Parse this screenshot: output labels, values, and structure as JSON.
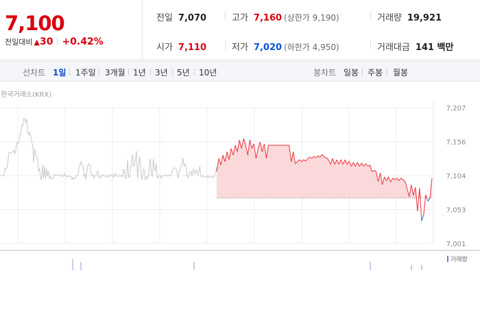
{
  "quote": {
    "price": "7,100",
    "change_label": "전일대비",
    "change_arrow": "▲",
    "change_amount": "30",
    "change_percent": "+0.42%",
    "prev_close_label": "전일",
    "prev_close": "7,070",
    "open_label": "시가",
    "open": "7,110",
    "high_label": "고가",
    "high": "7,160",
    "upper_limit": "(상한가 9,190)",
    "low_label": "저가",
    "low": "7,020",
    "lower_limit": "(하한가 4,950)",
    "volume_label": "거래량",
    "volume": "19,921",
    "value_label": "거래대금",
    "value": "141 백만"
  },
  "toolbar": {
    "line_chart_label": "선차트",
    "periods": [
      "1일",
      "1주일",
      "3개월",
      "1년",
      "3년",
      "5년",
      "10년"
    ],
    "selected_period": "1일",
    "candle_chart_label": "봉차트",
    "candles": [
      "일봉",
      "주봉",
      "월봉"
    ]
  },
  "chart_data": {
    "type": "line",
    "source": "한국거래소(KRX)",
    "y_ticks": [
      "7,207",
      "7,156",
      "7,104",
      "7,053",
      "7,001"
    ],
    "ylim": [
      7001,
      7207
    ],
    "reference_value": 7070,
    "volume_legend": "거래량",
    "colors": {
      "up": "#e8323c",
      "up_fill": "#fbd9da",
      "down": "#2b6fd6",
      "previous_day": "#c8c8c8",
      "grid": "#eeeeee"
    },
    "series": [
      {
        "values": [
          7104,
          7104,
          7104,
          7104,
          7104,
          7115,
          7114,
          7116,
          7125,
          7139,
          7138,
          7139,
          7139,
          7140,
          7142,
          7137,
          7143,
          7154,
          7153,
          7153,
          7167,
          7166,
          7180,
          7179,
          7190,
          7190,
          7184,
          7190,
          7170,
          7165,
          7170,
          7164,
          7155,
          7150,
          7124,
          7145,
          7135,
          7133,
          7130,
          7110,
          7115,
          7100,
          7098,
          7120,
          7100,
          7118,
          7099,
          7115,
          7103,
          7111,
          7099,
          7103,
          7099,
          7099,
          7100,
          7106,
          7105,
          7105,
          7104,
          7104,
          7105,
          7104,
          7105,
          7102,
          7104,
          7107,
          7103,
          7104,
          7102,
          7103,
          7104,
          7102,
          7102,
          7098,
          7101,
          7099,
          7099,
          7104,
          7104,
          7105,
          7116,
          7121,
          7125,
          7119,
          7118,
          7102,
          7106,
          7098,
          7112,
          7121,
          7122,
          7119,
          7108,
          7104,
          7105,
          7100,
          7104,
          7103,
          7110,
          7111,
          7102,
          7100,
          7103,
          7103,
          7105,
          7104,
          7103,
          7104,
          7102,
          7101,
          7105,
          7103,
          7104,
          7106,
          7103,
          7101,
          7107,
          7104,
          7105,
          7102,
          7103,
          7104,
          7103,
          7104,
          7102,
          7114,
          7109,
          7099,
          7104,
          7128,
          7102,
          7101,
          7115,
          7124,
          7136,
          7118,
          7120,
          7131,
          7141,
          7100,
          7120,
          7133,
          7119,
          7098,
          7102,
          7114,
          7111,
          7097,
          7102,
          7100,
          7103,
          7121,
          7130,
          7105,
          7103,
          7129,
          7114,
          7111,
          7122,
          7100,
          7102,
          7104,
          7104,
          7100,
          7102,
          7104,
          7104,
          7105,
          7104,
          7104,
          7103,
          7105,
          7104,
          7104,
          7112,
          7113,
          7116,
          7115,
          7114,
          7108,
          7100,
          7108,
          7114,
          7118,
          7121,
          7131,
          7117,
          7122,
          7120,
          7103,
          7101,
          7108,
          7109,
          7110,
          7103,
          7113,
          7114,
          7106,
          7111,
          7112,
          7104,
          7111,
          7118,
          7103,
          7102,
          7104,
          7102,
          7102,
          7102,
          7101,
          7104,
          7101,
          7102,
          7102,
          7103,
          7101,
          7101,
          7106,
          7108,
          7117
        ],
        "color": "#c8c8c8"
      },
      {
        "values": [
          7110,
          7130,
          7120,
          7135,
          7125,
          7140,
          7128,
          7145,
          7135,
          7150,
          7140,
          7158,
          7145,
          7160,
          7150,
          7135,
          7158,
          7145,
          7152,
          7130,
          7145,
          7155,
          7140,
          7152,
          7130,
          7150,
          7150,
          7150,
          7150,
          7150,
          7150,
          7150,
          7150,
          7150,
          7150,
          7150,
          7125,
          7140,
          7122,
          7125,
          7128,
          7125,
          7128,
          7126,
          7130,
          7132,
          7130,
          7133,
          7131,
          7134,
          7132,
          7136,
          7132,
          7131,
          7128,
          7121,
          7130,
          7121,
          7128,
          7121,
          7128,
          7121,
          7128,
          7121,
          7126,
          7118,
          7124,
          7118,
          7124,
          7118,
          7123,
          7118,
          7122,
          7118,
          7120,
          7110,
          7112,
          7110,
          7095,
          7108,
          7090,
          7102,
          7096,
          7102,
          7094,
          7100,
          7098,
          7100,
          7096,
          7100,
          7098,
          7095,
          7084,
          7072,
          7090,
          7074,
          7086,
          7050,
          7085,
          7035,
          7045,
          7075,
          7065,
          7070,
          7100
        ],
        "colors": [
          "#e8323c",
          "#2b6fd6"
        ],
        "reference_value": 7070
      }
    ],
    "volume": [
      4,
      3,
      3,
      3,
      2,
      2,
      3,
      2,
      4,
      1,
      2,
      2,
      1,
      6,
      1,
      2
    ]
  }
}
